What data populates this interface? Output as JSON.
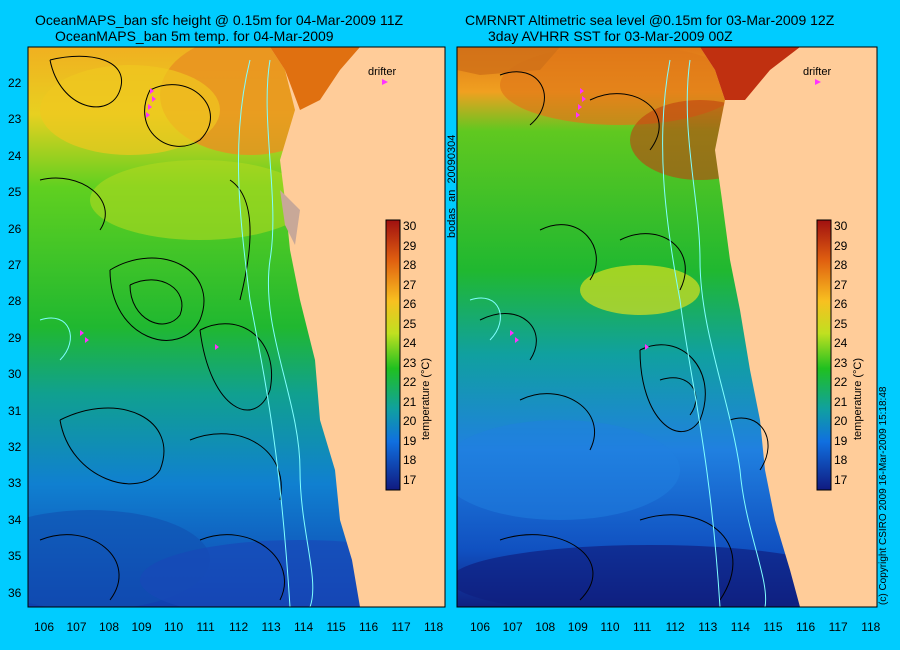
{
  "left_panel": {
    "title_line1": "OceanMAPS_ban sfc height @ 0.15m for 04-Mar-2009 11Z",
    "title_line2": "OceanMAPS_ban 5m temp. for 04-Mar-2009",
    "drifter_label": "drifter",
    "colorbar_label": "temperature (°C)"
  },
  "right_panel": {
    "title_line1": "CMRNRT Altimetric sea level  @0.15m  for 03-Mar-2009 12Z",
    "title_line2": "3day AVHRR SST for 03-Mar-2009 00Z",
    "drifter_label": "drifter",
    "colorbar_label": "temperature (°C)"
  },
  "side_labels": {
    "run_id": "bodas_an_20090304",
    "copyright": "(c) Copyright CSIRO 2009   16-Mar-2009 15:18:48"
  },
  "axes": {
    "lat_ticks": [
      "22",
      "23",
      "24",
      "25",
      "26",
      "27",
      "28",
      "29",
      "30",
      "31",
      "32",
      "33",
      "34",
      "35",
      "36"
    ],
    "lon_ticks": [
      "106",
      "107",
      "108",
      "109",
      "110",
      "111",
      "112",
      "113",
      "114",
      "115",
      "116",
      "117",
      "118"
    ]
  },
  "colorbar": {
    "ticks": [
      "30",
      "29",
      "28",
      "27",
      "26",
      "25",
      "24",
      "23",
      "22",
      "21",
      "20",
      "19",
      "18",
      "17"
    ],
    "colors": [
      "#a01010",
      "#d03010",
      "#e86010",
      "#f09018",
      "#f8c020",
      "#d8e020",
      "#80d020",
      "#20c020",
      "#10b050",
      "#10a080",
      "#1090c0",
      "#1070d0",
      "#1050c0",
      "#102090"
    ]
  },
  "map_colors": {
    "land": "#ffcc99",
    "contour": "#000000",
    "bathymetry": "#80ffff",
    "drifter_marker": "#ff33ff"
  }
}
